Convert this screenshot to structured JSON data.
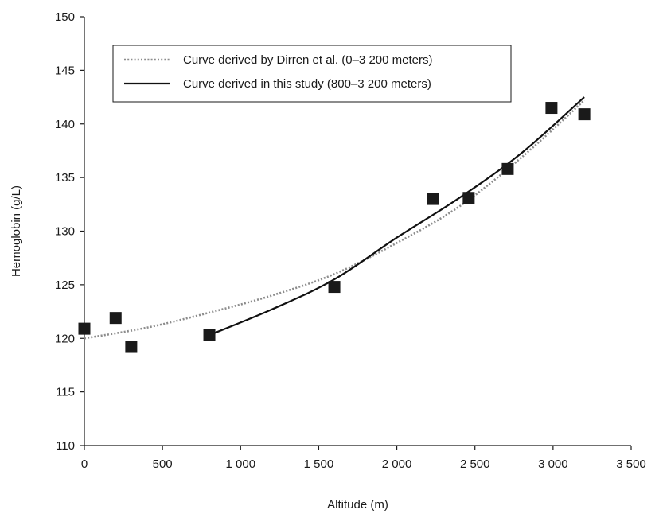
{
  "chart_data": {
    "type": "scatter",
    "xlabel": "Altitude (m)",
    "ylabel": "Hemoglobin (g/L)",
    "xlim": [
      0,
      3500
    ],
    "ylim": [
      110,
      150
    ],
    "xticks": [
      0,
      500,
      1000,
      1500,
      2000,
      2500,
      3000,
      3500
    ],
    "xtick_labels": [
      "0",
      "500",
      "1 000",
      "1 500",
      "2 000",
      "2 500",
      "3 000",
      "3 500"
    ],
    "yticks": [
      110,
      115,
      120,
      125,
      130,
      135,
      140,
      145,
      150
    ],
    "ytick_labels": [
      "110",
      "115",
      "120",
      "125",
      "130",
      "135",
      "140",
      "145",
      "150"
    ],
    "grid": false,
    "legend_position": "top-left",
    "points": {
      "x": [
        0,
        200,
        300,
        800,
        1600,
        2230,
        2460,
        2710,
        2990,
        3200
      ],
      "y": [
        120.9,
        121.9,
        119.2,
        120.3,
        124.8,
        133.0,
        133.1,
        135.8,
        141.5,
        140.9
      ],
      "marker": "square",
      "color": "#1a1a1a"
    },
    "series": [
      {
        "name": "Curve derived by Dirren et al. (0–3 200 meters)",
        "style": "dotted",
        "color": "#8c8c8c",
        "x": [
          0,
          400,
          800,
          1200,
          1600,
          2000,
          2400,
          2800,
          3200
        ],
        "y": [
          120.0,
          121.0,
          122.4,
          124.0,
          126.0,
          128.9,
          132.3,
          136.9,
          142.2
        ]
      },
      {
        "name": "Curve derived in this study (800–3 200 meters)",
        "style": "solid",
        "color": "#111111",
        "x": [
          800,
          1200,
          1600,
          2000,
          2400,
          2800,
          3200
        ],
        "y": [
          120.3,
          122.7,
          125.5,
          129.4,
          133.1,
          137.3,
          142.5
        ]
      }
    ]
  }
}
